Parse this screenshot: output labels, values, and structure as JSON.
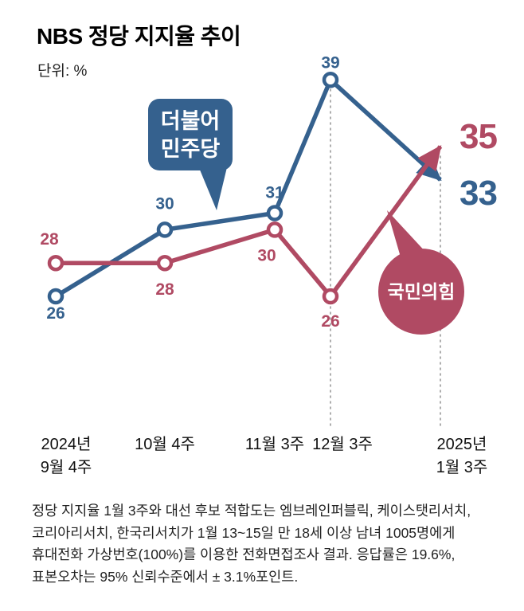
{
  "header": {
    "title": "NBS 정당 지지율 추이",
    "unit": "단위: %"
  },
  "chart_data": {
    "type": "line",
    "categories": [
      "2024년 9월 4주",
      "10월 4주",
      "11월 3주",
      "12월 3주",
      "2025년 1월 3주"
    ],
    "series": [
      {
        "name": "더불어민주당",
        "color": "#35618e",
        "values": [
          26,
          30,
          31,
          39,
          33
        ]
      },
      {
        "name": "국민의힘",
        "color": "#b04a63",
        "values": [
          28,
          28,
          30,
          26,
          35
        ]
      }
    ],
    "unit": "%",
    "ylim": [
      24,
      41
    ],
    "grid": false,
    "legend_position": "in-chart speech bubbles",
    "annotations": {
      "final_values": {
        "더불어민주당": 33,
        "국민의힘": 35
      },
      "style": "last segment drawn as large arrow; dotted vertical guide lines at 12월 3주 and 2025년 1월 3주"
    }
  },
  "labels": {
    "democratic_bubble": [
      "더불어",
      "민주당"
    ],
    "ppp_bubble": "국민의힘"
  },
  "x_axis": {
    "labels": [
      [
        "2024년",
        "9월 4주"
      ],
      [
        "10월 4주"
      ],
      [
        "11월 3주"
      ],
      [
        "12월 3주"
      ],
      [
        "2025년",
        "1월 3주"
      ]
    ]
  },
  "footer": {
    "lines": [
      "정당 지지율 1월 3주와 대선 후보 적합도는 엠브레인퍼블릭, 케이스탯리서치,",
      "코리아리서치, 한국리서치가 1월 13~15일 만 18세 이상 남녀 1005명에게",
      "휴대전화 가상번호(100%)를 이용한 전화면접조사 결과. 응답률은 19.6%,",
      "표본오차는 95% 신뢰수준에서 ± 3.1%포인트."
    ]
  }
}
